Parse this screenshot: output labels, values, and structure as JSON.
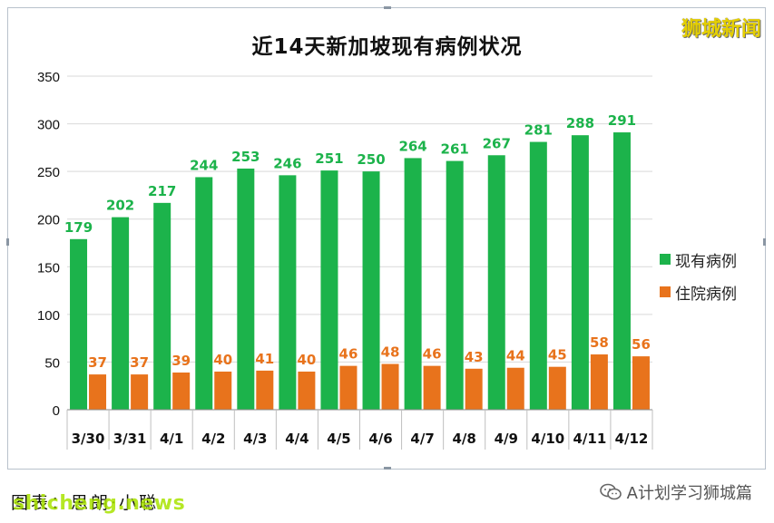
{
  "brand": {
    "name": "狮城新闻",
    "color": "#e5cf00"
  },
  "chart_data": {
    "type": "bar",
    "title": "近14天新加坡现有病例状况",
    "categories": [
      "3/30",
      "3/31",
      "4/1",
      "4/2",
      "4/3",
      "4/4",
      "4/5",
      "4/6",
      "4/7",
      "4/8",
      "4/9",
      "4/10",
      "4/11",
      "4/12"
    ],
    "series": [
      {
        "name": "现有病例",
        "color": "#1cb34b",
        "values": [
          179,
          202,
          217,
          244,
          253,
          246,
          251,
          250,
          264,
          261,
          267,
          281,
          288,
          291
        ]
      },
      {
        "name": "住院病例",
        "color": "#e8731c",
        "values": [
          37,
          37,
          39,
          40,
          41,
          40,
          46,
          48,
          46,
          43,
          44,
          45,
          58,
          56
        ]
      }
    ],
    "ylim": [
      0,
      350
    ],
    "yticks": [
      0,
      50,
      100,
      150,
      200,
      250,
      300,
      350
    ],
    "grid": true,
    "legend_position": "right"
  },
  "footer": {
    "source_left": "图表：思朗·小聪",
    "watermark": "shicheng.news",
    "account": "A计划学习狮城篇",
    "account_icon": "wechat-icon"
  }
}
